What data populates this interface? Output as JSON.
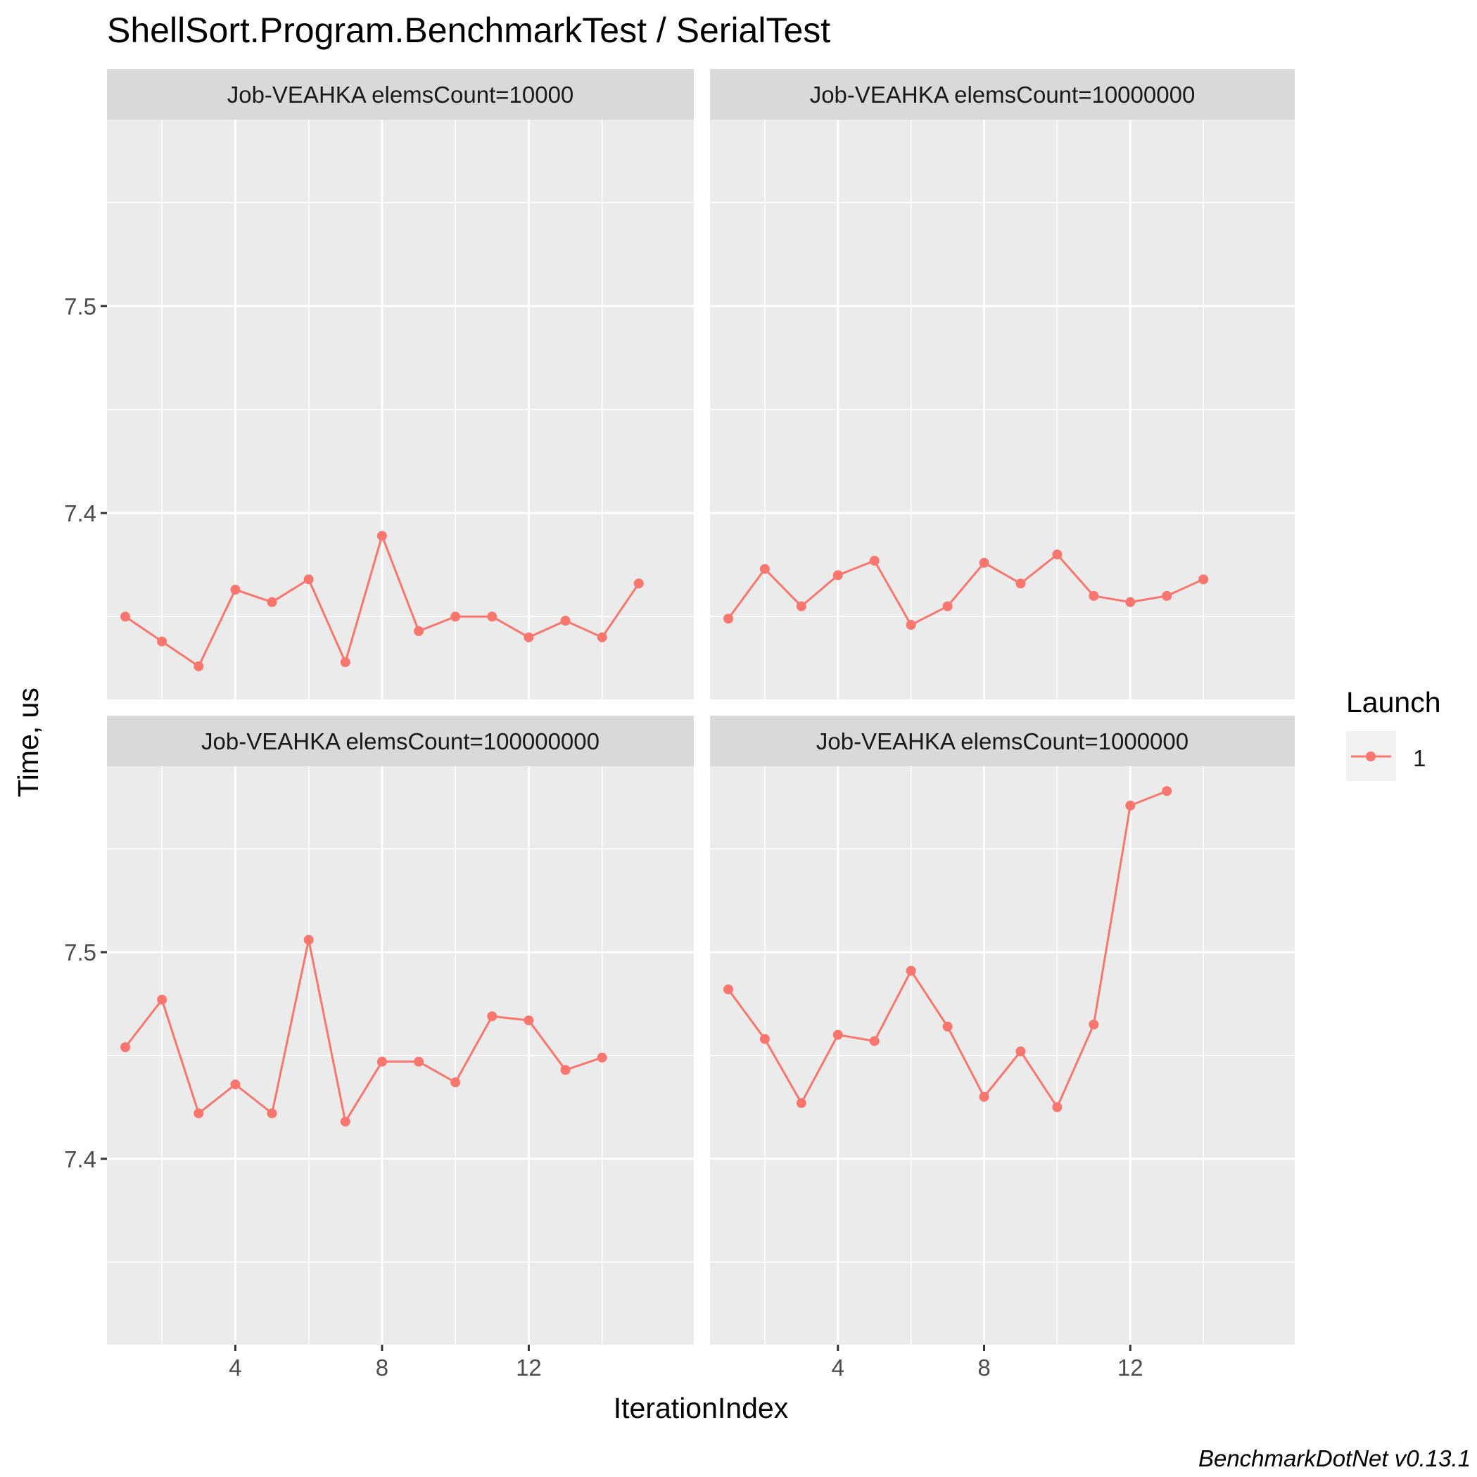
{
  "chart_data": {
    "type": "line",
    "title": "ShellSort.Program.BenchmarkTest / SerialTest",
    "xlabel": "IterationIndex",
    "ylabel": "Time, us",
    "caption": "BenchmarkDotNet v0.13.1",
    "facet_rows": [
      {
        "ylim": [
          7.31,
          7.59
        ],
        "y_ticks": [
          7.4,
          7.5
        ],
        "y_tick_labels": [
          "7.4",
          "7.5"
        ]
      },
      {
        "ylim": [
          7.31,
          7.59
        ],
        "y_ticks": [
          7.4,
          7.5
        ],
        "y_tick_labels": [
          "7.4",
          "7.5"
        ]
      }
    ],
    "xlim": [
      0.5,
      16.5
    ],
    "x_ticks": [
      4,
      8,
      12
    ],
    "x_tick_labels": [
      "4",
      "8",
      "12"
    ],
    "legend": {
      "title": "Launch",
      "position": "right",
      "entries": [
        {
          "label": "1",
          "color": "#F8766D"
        }
      ]
    },
    "series_color": "#F8766D",
    "grid": true,
    "panels": [
      {
        "label": "Job-VEAHKA elemsCount=10000",
        "series": [
          {
            "name": "1",
            "x": [
              1,
              2,
              3,
              4,
              5,
              6,
              7,
              8,
              9,
              10,
              11,
              12,
              13,
              14,
              15
            ],
            "y": [
              7.35,
              7.338,
              7.326,
              7.363,
              7.357,
              7.368,
              7.328,
              7.389,
              7.343,
              7.35,
              7.35,
              7.34,
              7.348,
              7.34,
              7.366
            ]
          }
        ]
      },
      {
        "label": "Job-VEAHKA elemsCount=10000000",
        "series": [
          {
            "name": "1",
            "x": [
              1,
              2,
              3,
              4,
              5,
              6,
              7,
              8,
              9,
              10,
              11,
              12,
              13,
              14
            ],
            "y": [
              7.349,
              7.373,
              7.355,
              7.37,
              7.377,
              7.346,
              7.355,
              7.376,
              7.366,
              7.38,
              7.36,
              7.357,
              7.36,
              7.368
            ]
          }
        ]
      },
      {
        "label": "Job-VEAHKA elemsCount=100000000",
        "series": [
          {
            "name": "1",
            "x": [
              1,
              2,
              3,
              4,
              5,
              6,
              7,
              8,
              9,
              10,
              11,
              12,
              13,
              14
            ],
            "y": [
              7.454,
              7.477,
              7.422,
              7.436,
              7.422,
              7.506,
              7.418,
              7.447,
              7.447,
              7.437,
              7.469,
              7.467,
              7.443,
              7.449
            ]
          }
        ]
      },
      {
        "label": "Job-VEAHKA elemsCount=1000000",
        "series": [
          {
            "name": "1",
            "x": [
              1,
              2,
              3,
              4,
              5,
              6,
              7,
              8,
              9,
              10,
              11,
              12,
              13
            ],
            "y": [
              7.482,
              7.458,
              7.427,
              7.46,
              7.457,
              7.491,
              7.464,
              7.43,
              7.452,
              7.425,
              7.465,
              7.571,
              7.578
            ]
          }
        ]
      }
    ]
  }
}
